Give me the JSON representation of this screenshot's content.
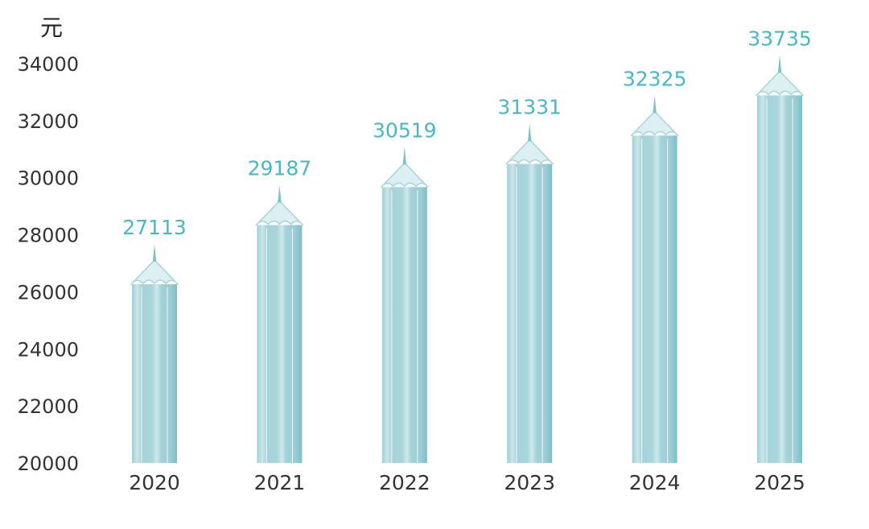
{
  "chart_data": {
    "type": "bar",
    "title": "",
    "xlabel": "",
    "ylabel": "",
    "unit": "元",
    "categories": [
      "2020",
      "2021",
      "2022",
      "2023",
      "2024",
      "2025"
    ],
    "values": [
      27113,
      29187,
      30519,
      31331,
      32325,
      33735
    ],
    "ylim": [
      20000,
      34000
    ],
    "yticks": [
      20000,
      22000,
      24000,
      26000,
      28000,
      30000,
      32000,
      34000
    ],
    "grid": false,
    "legend": "none",
    "bar_style": "pencil",
    "colors": {
      "bar": "#a6d5db",
      "bar_tip": "#dceff2",
      "label": "#4ab7c3",
      "axis_text": "#333333"
    }
  }
}
